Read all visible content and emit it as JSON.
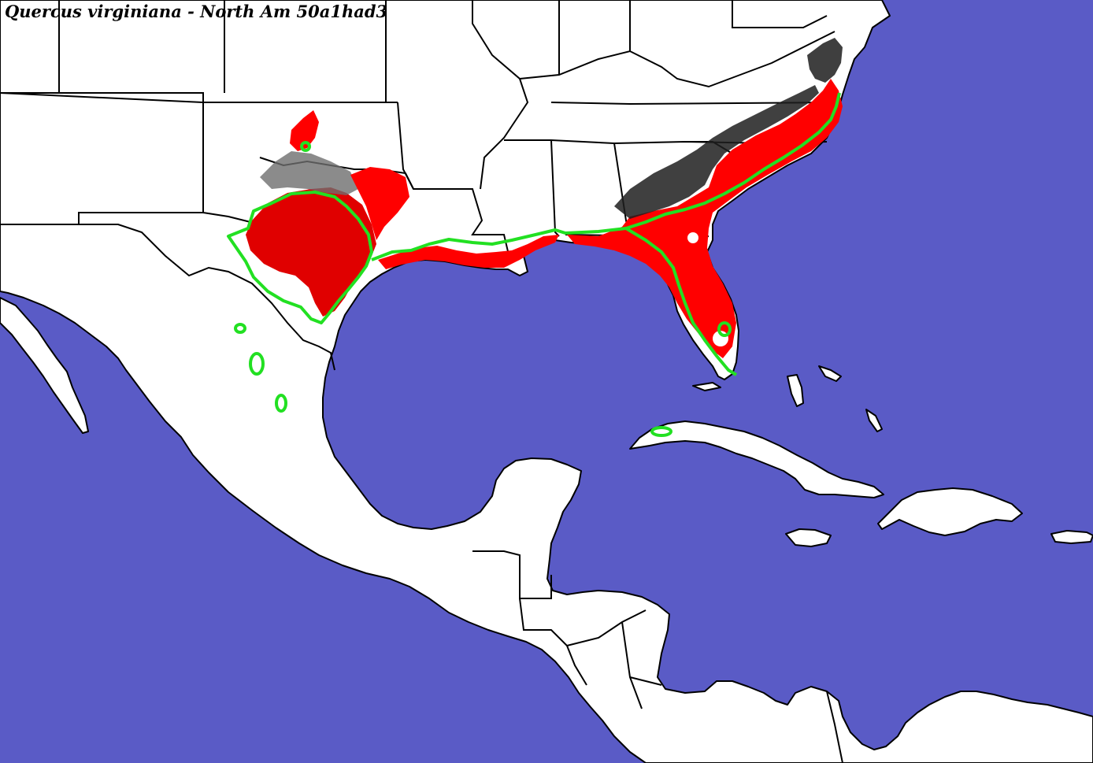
{
  "map": {
    "title": "Quercus virginiana - North Am 50a1had3",
    "colors": {
      "water": "#5a5bc6",
      "land": "#ffffff",
      "borders": "#000000",
      "suitability_high": "#ff0000",
      "suitability_other": "#2b2b2b",
      "suitability_gray": "#8a8a8a",
      "known_range_outline": "#22e022"
    },
    "layers": [
      "land",
      "suitability",
      "political-borders",
      "known-range-outline"
    ]
  }
}
